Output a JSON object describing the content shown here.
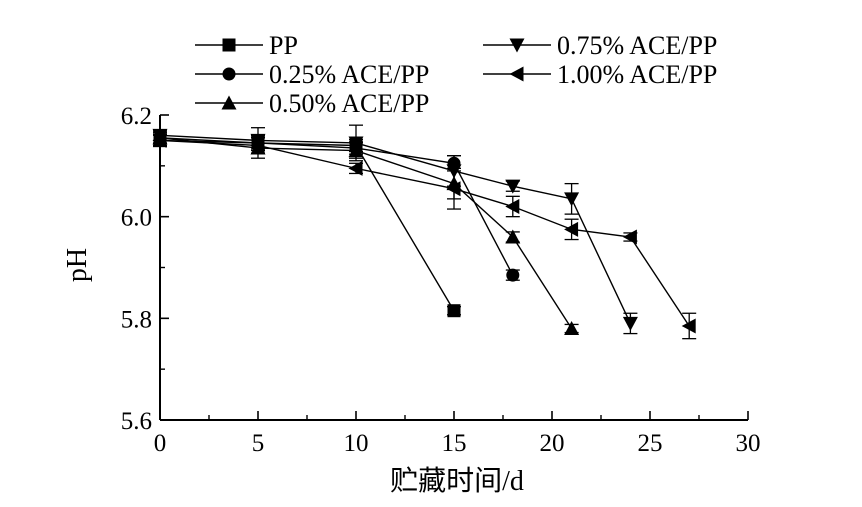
{
  "chart_data": {
    "type": "line",
    "xlabel": "贮藏时间/d",
    "ylabel": "pH",
    "xlim": [
      0,
      30
    ],
    "ylim": [
      5.6,
      6.2
    ],
    "x_ticks": [
      0,
      5,
      10,
      15,
      20,
      25,
      30
    ],
    "x_tick_labels": [
      "0",
      "5",
      "10",
      "15",
      "20",
      "25",
      "30"
    ],
    "y_ticks": [
      5.6,
      5.8,
      6.0,
      6.2
    ],
    "y_tick_labels": [
      "5.6",
      "5.8",
      "6.0",
      "6.2"
    ],
    "grid": false,
    "legend_position": "top",
    "series": [
      {
        "name": "PP",
        "marker": "square",
        "x": [
          0,
          5,
          10,
          15
        ],
        "y": [
          6.15,
          6.145,
          6.14,
          5.815
        ],
        "err": [
          0.012,
          0.012,
          0.012,
          0.008
        ]
      },
      {
        "name": "0.25% ACE/PP",
        "marker": "circle",
        "x": [
          0,
          5,
          10,
          15,
          18
        ],
        "y": [
          6.155,
          6.145,
          6.135,
          6.105,
          5.885
        ],
        "err": [
          0.01,
          0.015,
          0.012,
          0.015,
          0.01
        ]
      },
      {
        "name": "0.50% ACE/PP",
        "marker": "triangle-up",
        "x": [
          0,
          5,
          10,
          15,
          18,
          21
        ],
        "y": [
          6.155,
          6.135,
          6.13,
          6.065,
          5.96,
          5.78
        ],
        "err": [
          0.012,
          0.02,
          0.015,
          0.03,
          0.01,
          0.008
        ]
      },
      {
        "name": "0.75% ACE/PP",
        "marker": "triangle-down",
        "x": [
          0,
          5,
          10,
          15,
          18,
          21,
          24
        ],
        "y": [
          6.16,
          6.15,
          6.145,
          6.09,
          6.06,
          6.035,
          5.79
        ],
        "err": [
          0.01,
          0.025,
          0.035,
          0.03,
          0.01,
          0.03,
          0.02
        ]
      },
      {
        "name": "1.00% ACE/PP",
        "marker": "triangle-left",
        "x": [
          0,
          5,
          10,
          15,
          18,
          21,
          24,
          27
        ],
        "y": [
          6.15,
          6.14,
          6.095,
          6.055,
          6.02,
          5.975,
          5.96,
          5.785
        ],
        "err": [
          0.01,
          0.015,
          0.01,
          0.04,
          0.02,
          0.02,
          0.008,
          0.025
        ]
      }
    ]
  }
}
